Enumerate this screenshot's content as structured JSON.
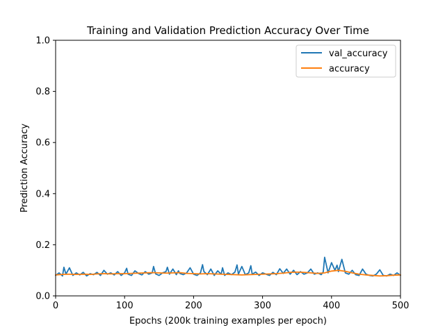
{
  "chart_data": {
    "type": "line",
    "title": "Training and Validation Prediction Accuracy Over Time",
    "xlabel": "Epochs (200k training examples per epoch)",
    "ylabel": "Prediction Accuracy",
    "xlim": [
      0,
      500
    ],
    "ylim": [
      0,
      1.0
    ],
    "xticks": [
      0,
      100,
      200,
      300,
      400,
      500
    ],
    "xtick_labels": [
      "0",
      "100",
      "200",
      "300",
      "400",
      "500"
    ],
    "yticks": [
      0,
      0.2,
      0.4,
      0.6,
      0.8,
      1.0
    ],
    "ytick_labels": [
      "0.0",
      "0.2",
      "0.4",
      "0.6",
      "0.8",
      "1.0"
    ],
    "grid": false,
    "legend_position": "top-right",
    "series": [
      {
        "name": "val_accuracy",
        "color": "#1f77b4",
        "x": [
          0,
          5,
          10,
          12,
          15,
          20,
          25,
          30,
          35,
          40,
          45,
          50,
          55,
          60,
          65,
          70,
          75,
          80,
          85,
          90,
          95,
          100,
          103,
          105,
          110,
          115,
          120,
          125,
          130,
          135,
          140,
          142,
          145,
          150,
          155,
          160,
          162,
          165,
          170,
          175,
          178,
          180,
          185,
          190,
          195,
          200,
          205,
          210,
          213,
          215,
          220,
          225,
          230,
          235,
          240,
          242,
          245,
          250,
          255,
          260,
          263,
          265,
          270,
          275,
          280,
          283,
          285,
          290,
          295,
          300,
          305,
          310,
          315,
          320,
          325,
          330,
          335,
          340,
          345,
          350,
          355,
          360,
          365,
          370,
          375,
          380,
          385,
          388,
          390,
          395,
          400,
          405,
          408,
          410,
          415,
          420,
          425,
          430,
          435,
          440,
          445,
          450,
          455,
          460,
          465,
          470,
          475,
          480,
          485,
          490,
          495,
          500
        ],
        "values": [
          0.08,
          0.09,
          0.078,
          0.112,
          0.085,
          0.11,
          0.08,
          0.09,
          0.082,
          0.092,
          0.078,
          0.087,
          0.083,
          0.092,
          0.08,
          0.1,
          0.085,
          0.09,
          0.082,
          0.095,
          0.08,
          0.09,
          0.108,
          0.085,
          0.08,
          0.098,
          0.088,
          0.082,
          0.095,
          0.085,
          0.09,
          0.115,
          0.086,
          0.08,
          0.09,
          0.095,
          0.112,
          0.085,
          0.105,
          0.083,
          0.098,
          0.088,
          0.083,
          0.09,
          0.11,
          0.085,
          0.08,
          0.09,
          0.122,
          0.095,
          0.083,
          0.105,
          0.08,
          0.098,
          0.085,
          0.11,
          0.08,
          0.09,
          0.083,
          0.093,
          0.121,
          0.085,
          0.115,
          0.083,
          0.09,
          0.118,
          0.085,
          0.093,
          0.08,
          0.09,
          0.085,
          0.08,
          0.092,
          0.083,
          0.106,
          0.088,
          0.105,
          0.085,
          0.1,
          0.083,
          0.095,
          0.085,
          0.09,
          0.105,
          0.085,
          0.09,
          0.083,
          0.094,
          0.151,
          0.09,
          0.13,
          0.1,
          0.12,
          0.095,
          0.143,
          0.09,
          0.085,
          0.1,
          0.083,
          0.08,
          0.105,
          0.085,
          0.08,
          0.078,
          0.085,
          0.102,
          0.08,
          0.078,
          0.085,
          0.08,
          0.09,
          0.08
        ]
      },
      {
        "name": "accuracy",
        "color": "#ff7f0e",
        "x": [
          0,
          10,
          20,
          30,
          40,
          50,
          60,
          70,
          80,
          90,
          100,
          110,
          120,
          130,
          140,
          150,
          160,
          170,
          180,
          190,
          200,
          210,
          220,
          230,
          240,
          250,
          260,
          270,
          280,
          290,
          300,
          310,
          320,
          330,
          340,
          350,
          360,
          370,
          380,
          390,
          400,
          410,
          420,
          430,
          440,
          450,
          460,
          470,
          480,
          490,
          500
        ],
        "values": [
          0.082,
          0.084,
          0.085,
          0.084,
          0.085,
          0.084,
          0.086,
          0.087,
          0.086,
          0.087,
          0.087,
          0.088,
          0.089,
          0.09,
          0.091,
          0.09,
          0.089,
          0.09,
          0.091,
          0.088,
          0.087,
          0.086,
          0.087,
          0.086,
          0.085,
          0.084,
          0.083,
          0.082,
          0.083,
          0.084,
          0.085,
          0.086,
          0.087,
          0.089,
          0.092,
          0.093,
          0.092,
          0.09,
          0.088,
          0.09,
          0.097,
          0.1,
          0.096,
          0.09,
          0.085,
          0.082,
          0.08,
          0.078,
          0.079,
          0.081,
          0.082
        ]
      }
    ]
  }
}
